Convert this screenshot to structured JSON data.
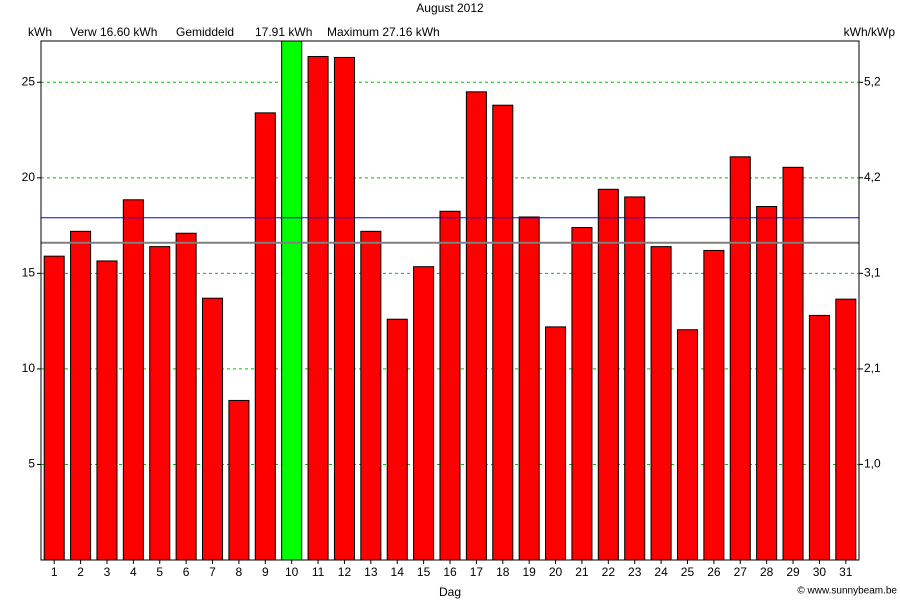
{
  "chart_data": {
    "type": "bar",
    "title": "August 2012",
    "ylabel": "kWh",
    "y2label": "kWh/kWp",
    "xlabel": "Dag",
    "footer": "© www.sunnybeam.be",
    "categories": [
      "1",
      "2",
      "3",
      "4",
      "5",
      "6",
      "7",
      "8",
      "9",
      "10",
      "11",
      "12",
      "13",
      "14",
      "15",
      "16",
      "17",
      "18",
      "19",
      "20",
      "21",
      "22",
      "23",
      "24",
      "25",
      "26",
      "27",
      "28",
      "29",
      "30",
      "31"
    ],
    "values": [
      15.9,
      17.2,
      15.65,
      18.85,
      16.4,
      17.1,
      13.7,
      8.35,
      23.4,
      27.16,
      26.35,
      26.3,
      17.2,
      12.6,
      15.35,
      18.25,
      24.5,
      23.8,
      17.95,
      12.2,
      17.4,
      19.4,
      19.0,
      16.4,
      12.05,
      16.2,
      21.1,
      18.5,
      20.55,
      12.8,
      13.65
    ],
    "color": "#ff0000",
    "ylim": [
      0,
      27.16
    ],
    "yticks": [
      5,
      10,
      15,
      20,
      25
    ],
    "y2lim": [
      0,
      5.658
    ],
    "y2ticks": [
      {
        "value": 1.042,
        "label": "1,0"
      },
      {
        "value": 2.083,
        "label": "2,1"
      },
      {
        "value": 3.125,
        "label": "3,1"
      },
      {
        "value": 4.167,
        "label": "4,2"
      },
      {
        "value": 5.208,
        "label": "5,2"
      }
    ],
    "grid": true,
    "grid_color": "#00c000",
    "expected": {
      "label": "Verw 16.60 kWh",
      "value": 16.6,
      "color": "#808080"
    },
    "average": {
      "name": "Gemiddeld",
      "label": "17.91 kWh",
      "value": 17.91,
      "color": "#0000ff"
    },
    "maximum": {
      "label": "Maximum 27.16 kWh",
      "value": 27.16,
      "color": "#00ff00"
    }
  }
}
